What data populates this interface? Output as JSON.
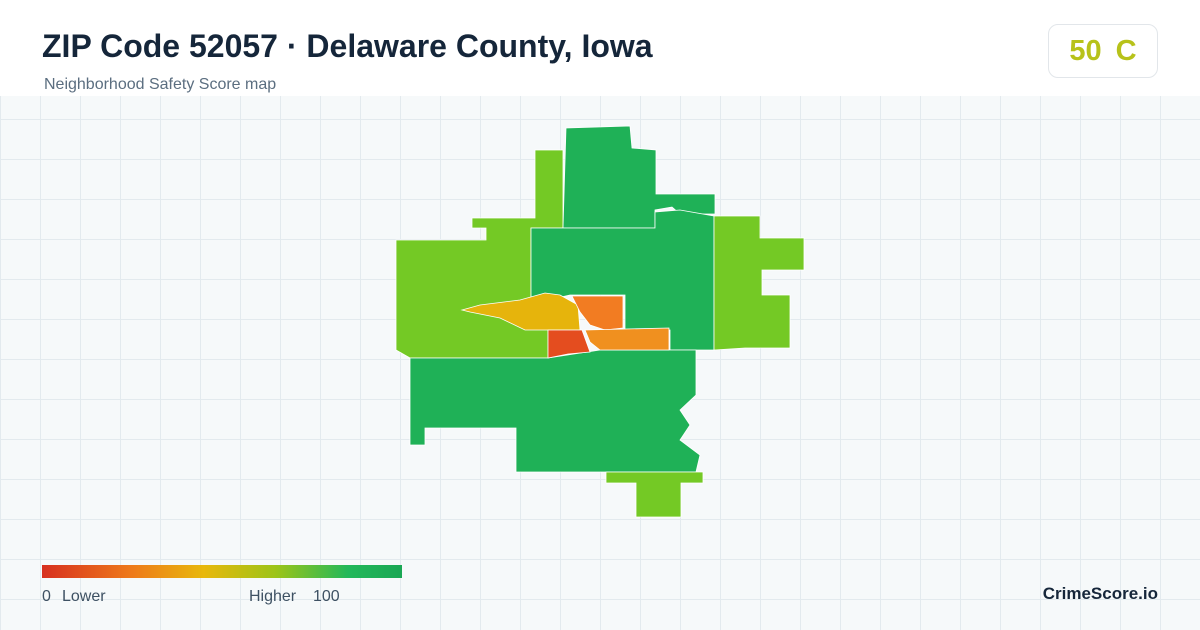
{
  "header": {
    "title": "ZIP Code 52057 · Delaware County, Iowa",
    "subtitle": "Neighborhood Safety Score map"
  },
  "score": {
    "value": 50,
    "grade": "C"
  },
  "legend": {
    "min": 0,
    "min_label": "Lower",
    "max_label": "Higher",
    "max": 100
  },
  "brand": "CrimeScore.io"
}
